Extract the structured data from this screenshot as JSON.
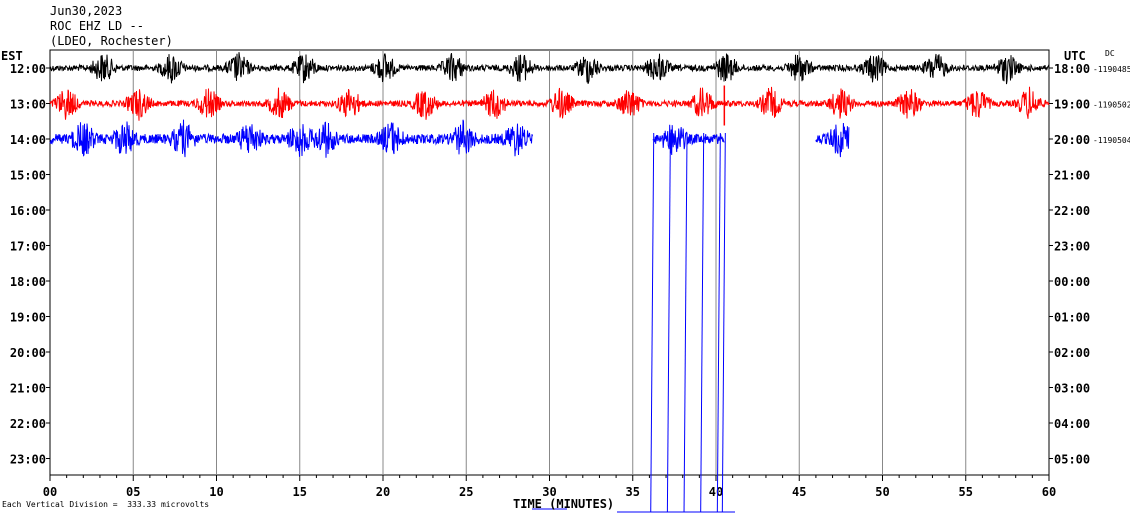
{
  "header": {
    "date": "Jun30,2023",
    "station": "ROC EHZ LD --",
    "network": "(LDEO, Rochester)"
  },
  "axes": {
    "left_tz": "EST",
    "right_tz": "UTC",
    "dc_label": "DC",
    "xlabel": "TIME (MINUTES)",
    "footer_note": "Each Vertical Division =  333.33 microvolts"
  },
  "chart_data": {
    "type": "line",
    "title": "",
    "x_range": [
      0,
      60
    ],
    "x_ticks": [
      "00",
      "05",
      "10",
      "15",
      "20",
      "25",
      "30",
      "35",
      "40",
      "45",
      "50",
      "55",
      "60"
    ],
    "y_rows_left": [
      "12:00",
      "13:00",
      "14:00",
      "15:00",
      "16:00",
      "17:00",
      "18:00",
      "19:00",
      "20:00",
      "21:00",
      "22:00",
      "23:00"
    ],
    "y_rows_right": [
      "18:00",
      "19:00",
      "20:00",
      "21:00",
      "22:00",
      "23:00",
      "00:00",
      "01:00",
      "02:00",
      "03:00",
      "04:00",
      "05:00"
    ],
    "dc_offsets": [
      "-1190485",
      "-1190502",
      "-1190504"
    ],
    "grid": "vertical every 5 minutes",
    "series": [
      {
        "row": 0,
        "color": "#000000",
        "start_min": 0,
        "end_min": 60,
        "bursts_min": [
          3.2,
          7.3,
          11.3,
          15.3,
          20.1,
          24.2,
          28.3,
          32.3,
          36.5,
          40.6,
          45.0,
          49.5,
          53.2,
          57.5
        ]
      },
      {
        "row": 1,
        "color": "#ff0000",
        "start_min": 0,
        "end_min": 60,
        "bursts_min": [
          1.0,
          5.3,
          9.5,
          13.8,
          18.0,
          22.5,
          26.7,
          30.7,
          34.8,
          39.2,
          43.3,
          47.5,
          51.6,
          55.7,
          58.8
        ]
      },
      {
        "row": 2,
        "color": "#0000ff",
        "start_min": 0,
        "end_min": 29,
        "bursts_min": [
          2.0,
          4.5,
          8.0,
          12.0,
          15.0,
          16.5,
          20.5,
          24.8,
          28.0
        ]
      },
      {
        "row": 2,
        "color": "#0000ff",
        "start_min": 36.2,
        "end_min": 40.5,
        "bursts_min": [
          37.5
        ]
      },
      {
        "row": 2,
        "color": "#0000ff",
        "start_min": 46.0,
        "end_min": 48.0,
        "bursts_min": [
          47.5
        ]
      }
    ],
    "spikes_min": [
      36.2,
      37.2,
      38.2,
      39.2,
      40.2,
      40.5
    ]
  }
}
